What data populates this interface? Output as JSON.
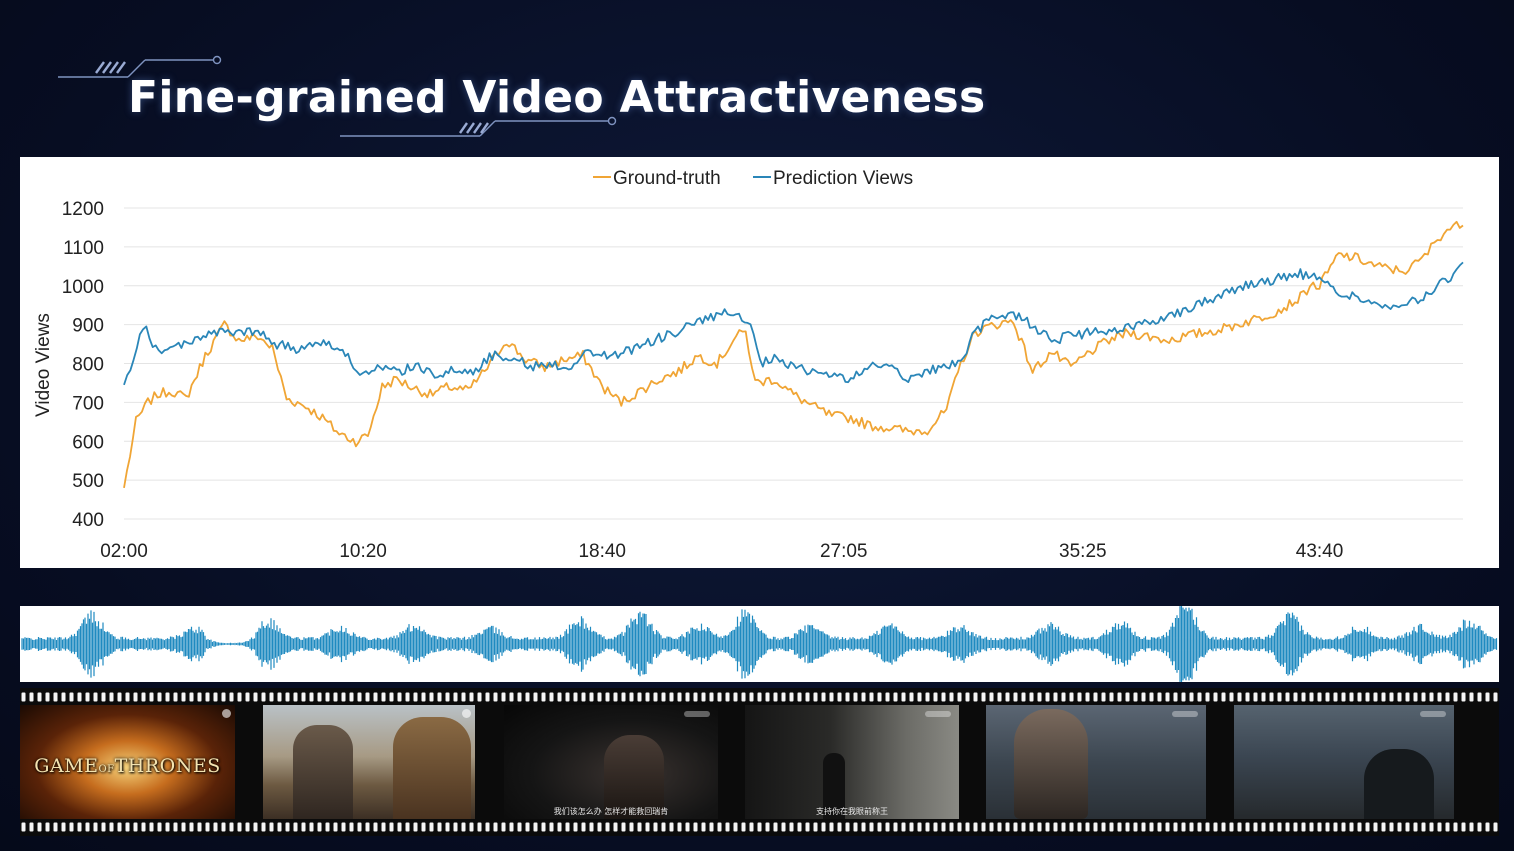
{
  "slide": {
    "title": "Fine-grained Video Attractiveness"
  },
  "colors": {
    "ground_truth": "#f0a535",
    "prediction": "#2a86b8",
    "waveform": "#1f8ac0"
  },
  "chart_data": {
    "type": "line",
    "title": "",
    "xlabel": "",
    "ylabel": "Video Views",
    "ylim": [
      400,
      1200
    ],
    "yticks": [
      400,
      500,
      600,
      700,
      800,
      900,
      1000,
      1100,
      1200
    ],
    "xticks": [
      "02:00",
      "10:20",
      "18:40",
      "27:05",
      "35:25",
      "43:40"
    ],
    "xlim": [
      "02:00",
      "48:40"
    ],
    "grid": true,
    "legend_position": "top-center",
    "series": [
      {
        "name": "Ground-truth",
        "color": "#f0a535",
        "x": [
          "02:00",
          "02:25",
          "02:50",
          "03:10",
          "03:40",
          "04:10",
          "04:50",
          "05:30",
          "06:00",
          "06:40",
          "07:10",
          "07:40",
          "08:20",
          "08:55",
          "09:30",
          "10:05",
          "10:30",
          "11:00",
          "11:30",
          "12:00",
          "12:40",
          "13:20",
          "14:00",
          "14:40",
          "15:20",
          "16:00",
          "16:40",
          "17:20",
          "18:00",
          "18:40",
          "19:20",
          "20:00",
          "20:40",
          "21:20",
          "22:00",
          "22:40",
          "23:20",
          "23:40",
          "24:00",
          "24:40",
          "25:20",
          "26:00",
          "26:40",
          "27:20",
          "28:00",
          "28:40",
          "29:20",
          "30:00",
          "30:40",
          "31:10",
          "31:40",
          "32:20",
          "33:00",
          "33:40",
          "34:20",
          "35:00",
          "35:40",
          "36:20",
          "37:00",
          "37:40",
          "38:20",
          "39:00",
          "39:40",
          "40:20",
          "41:00",
          "41:40",
          "42:20",
          "43:00",
          "43:20",
          "43:40",
          "44:20",
          "45:00",
          "45:40",
          "46:20",
          "46:40",
          "47:00",
          "47:20",
          "47:40",
          "48:00",
          "48:20",
          "48:40"
        ],
        "values": [
          480,
          650,
          700,
          720,
          730,
          710,
          820,
          900,
          860,
          870,
          840,
          710,
          690,
          660,
          620,
          600,
          615,
          740,
          760,
          740,
          720,
          740,
          730,
          790,
          860,
          810,
          790,
          810,
          820,
          740,
          700,
          730,
          760,
          780,
          820,
          800,
          870,
          880,
          750,
          760,
          720,
          690,
          665,
          660,
          640,
          635,
          625,
          630,
          680,
          800,
          880,
          900,
          910,
          780,
          830,
          790,
          830,
          860,
          880,
          870,
          860,
          870,
          880,
          890,
          905,
          920,
          940,
          970,
          1000,
          1000,
          1080,
          1070,
          1050,
          1040,
          1040,
          1055,
          1075,
          1110,
          1140,
          1152,
          1155
        ]
      },
      {
        "name": "Prediction Views",
        "color": "#2a86b8",
        "x": [
          "02:00",
          "02:20",
          "02:40",
          "03:00",
          "03:25",
          "04:00",
          "04:40",
          "05:20",
          "06:00",
          "06:40",
          "07:20",
          "08:00",
          "08:40",
          "09:20",
          "10:00",
          "10:20",
          "10:50",
          "11:30",
          "12:10",
          "12:50",
          "13:30",
          "14:10",
          "14:50",
          "15:30",
          "16:10",
          "16:50",
          "17:30",
          "18:10",
          "18:50",
          "19:30",
          "20:10",
          "20:50",
          "21:30",
          "22:10",
          "22:50",
          "23:20",
          "23:50",
          "24:10",
          "24:40",
          "25:20",
          "26:00",
          "26:40",
          "27:20",
          "28:00",
          "28:40",
          "29:20",
          "30:00",
          "30:40",
          "31:10",
          "31:40",
          "32:20",
          "33:00",
          "33:40",
          "34:20",
          "35:00",
          "35:40",
          "36:20",
          "37:00",
          "37:40",
          "38:20",
          "39:00",
          "39:40",
          "40:20",
          "41:00",
          "41:40",
          "42:20",
          "43:00",
          "43:40",
          "44:20",
          "45:00",
          "45:40",
          "46:20",
          "47:00",
          "47:40",
          "48:20",
          "48:40"
        ],
        "values": [
          745,
          800,
          900,
          850,
          830,
          850,
          870,
          880,
          880,
          880,
          850,
          835,
          860,
          845,
          800,
          770,
          785,
          780,
          790,
          775,
          780,
          780,
          820,
          820,
          790,
          800,
          790,
          830,
          820,
          830,
          850,
          870,
          890,
          910,
          930,
          920,
          900,
          800,
          810,
          790,
          780,
          770,
          760,
          790,
          800,
          760,
          780,
          790,
          810,
          880,
          920,
          930,
          900,
          860,
          870,
          880,
          880,
          890,
          910,
          920,
          940,
          960,
          980,
          1000,
          1010,
          1020,
          1030,
          1020,
          980,
          970,
          950,
          940,
          960,
          990,
          1030,
          1060
        ]
      }
    ]
  },
  "frames": [
    {
      "logo": "GAME OF THRONES"
    },
    {
      "subtitle": ""
    },
    {
      "subtitle": "我们该怎么办 怎样才能救回瑞肯"
    },
    {
      "subtitle": "支持你在我眼前称王"
    },
    {
      "subtitle": ""
    },
    {
      "subtitle": ""
    }
  ]
}
